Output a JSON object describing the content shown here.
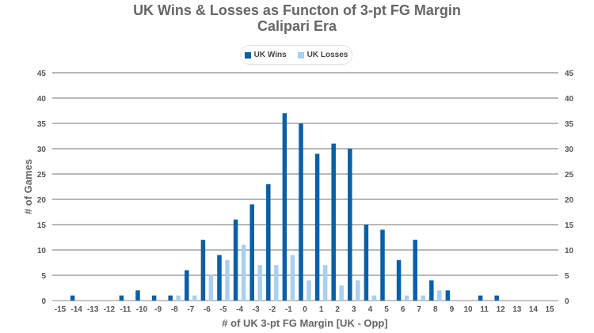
{
  "chart_data": {
    "type": "bar",
    "title": "UK Wins & Losses as Functon of 3-pt FG Margin",
    "subtitle": "Calipari Era",
    "xlabel": "# of UK 3-pt FG Margin [UK - Opp]",
    "ylabel": "# of Games",
    "ylim": [
      0,
      45
    ],
    "yticks": [
      0,
      5,
      10,
      15,
      20,
      25,
      30,
      35,
      40,
      45
    ],
    "grid": true,
    "legend_position": "top-center",
    "categories": [
      "-15",
      "-14",
      "-13",
      "-12",
      "-11",
      "-10",
      "-9",
      "-8",
      "-7",
      "-6",
      "-5",
      "-4",
      "-3",
      "-2",
      "-1",
      "0",
      "1",
      "2",
      "3",
      "4",
      "5",
      "6",
      "7",
      "8",
      "9",
      "10",
      "11",
      "12",
      "13",
      "14",
      "15"
    ],
    "series": [
      {
        "name": "UK Wins",
        "color": "#0a5fa5",
        "values": [
          0,
          1,
          0,
          0,
          1,
          2,
          1,
          1,
          6,
          12,
          9,
          16,
          19,
          23,
          37,
          35,
          29,
          31,
          30,
          15,
          14,
          8,
          12,
          4,
          2,
          0,
          1,
          1,
          0,
          0,
          0
        ]
      },
      {
        "name": "UK Losses",
        "color": "#a9d0ee",
        "values": [
          0,
          0,
          0,
          0,
          0,
          0,
          0,
          1,
          1,
          5,
          8,
          11,
          7,
          7,
          9,
          4,
          7,
          3,
          4,
          1,
          0,
          1,
          1,
          2,
          0,
          0,
          0,
          0,
          0,
          0,
          0
        ]
      }
    ]
  }
}
